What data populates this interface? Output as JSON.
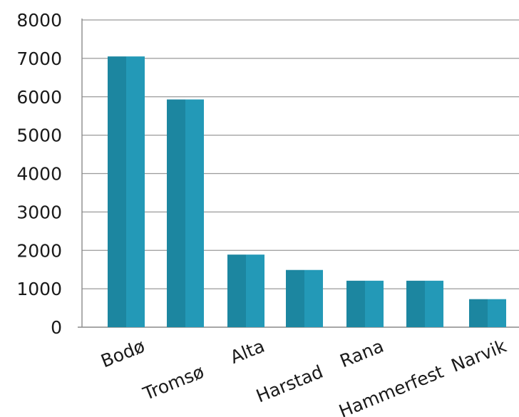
{
  "chart_data": {
    "type": "bar",
    "title": "",
    "xlabel": "",
    "ylabel": "",
    "categories": [
      "Bodø",
      "Tromsø",
      "Alta",
      "Harstad",
      "Rana",
      "Hammerfest",
      "Narvik"
    ],
    "values": [
      7050,
      5930,
      1890,
      1490,
      1210,
      1210,
      730
    ],
    "ylim": [
      0,
      8000
    ],
    "yticks": [
      "0",
      "1000",
      "2000",
      "3000",
      "4000",
      "5000",
      "6000",
      "7000",
      "8000"
    ],
    "grid": true,
    "legend": "none",
    "colors": {
      "bar_dark": "#1c86a0",
      "bar_light": "#2399b7",
      "grid": "#9a9a9a",
      "axis": "#8a8a8a"
    }
  }
}
